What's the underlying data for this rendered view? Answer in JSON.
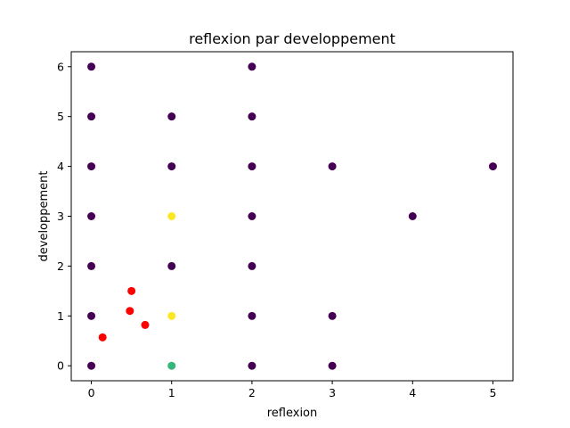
{
  "chart_data": {
    "type": "scatter",
    "title": "reflexion par developpement",
    "xlabel": "reflexion",
    "ylabel": "developpement",
    "xlim": [
      -0.25,
      5.25
    ],
    "ylim": [
      -0.3,
      6.3
    ],
    "xticks": [
      0,
      1,
      2,
      3,
      4,
      5
    ],
    "yticks": [
      0,
      1,
      2,
      3,
      4,
      5,
      6
    ],
    "grid": false,
    "colors": {
      "purple": "#440154",
      "yellow": "#fde725",
      "teal": "#35b779",
      "red": "#ff0000"
    },
    "points": [
      {
        "x": 0,
        "y": 6,
        "color": "purple"
      },
      {
        "x": 0,
        "y": 5,
        "color": "purple"
      },
      {
        "x": 0,
        "y": 4,
        "color": "purple"
      },
      {
        "x": 0,
        "y": 3,
        "color": "purple"
      },
      {
        "x": 0,
        "y": 2,
        "color": "purple"
      },
      {
        "x": 0,
        "y": 1,
        "color": "purple"
      },
      {
        "x": 0,
        "y": 0,
        "color": "purple"
      },
      {
        "x": 1,
        "y": 5,
        "color": "purple"
      },
      {
        "x": 1,
        "y": 4,
        "color": "purple"
      },
      {
        "x": 1,
        "y": 3,
        "color": "yellow"
      },
      {
        "x": 1,
        "y": 2,
        "color": "purple"
      },
      {
        "x": 1,
        "y": 1,
        "color": "yellow"
      },
      {
        "x": 1,
        "y": 0,
        "color": "teal"
      },
      {
        "x": 2,
        "y": 6,
        "color": "purple"
      },
      {
        "x": 2,
        "y": 5,
        "color": "purple"
      },
      {
        "x": 2,
        "y": 4,
        "color": "purple"
      },
      {
        "x": 2,
        "y": 3,
        "color": "purple"
      },
      {
        "x": 2,
        "y": 2,
        "color": "purple"
      },
      {
        "x": 2,
        "y": 1,
        "color": "purple"
      },
      {
        "x": 2,
        "y": 0,
        "color": "purple"
      },
      {
        "x": 3,
        "y": 4,
        "color": "purple"
      },
      {
        "x": 3,
        "y": 1,
        "color": "purple"
      },
      {
        "x": 3,
        "y": 0,
        "color": "purple"
      },
      {
        "x": 4,
        "y": 3,
        "color": "purple"
      },
      {
        "x": 5,
        "y": 4,
        "color": "purple"
      },
      {
        "x": 0.5,
        "y": 1.5,
        "color": "red"
      },
      {
        "x": 0.48,
        "y": 1.1,
        "color": "red"
      },
      {
        "x": 0.67,
        "y": 0.82,
        "color": "red"
      },
      {
        "x": 0.14,
        "y": 0.57,
        "color": "red"
      }
    ]
  }
}
